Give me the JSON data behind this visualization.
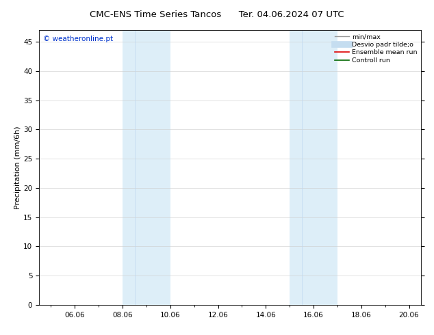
{
  "title_left": "CMC-ENS Time Series Tancos",
  "title_right": "Ter. 04.06.2024 07 UTC",
  "ylabel": "Precipitation (mm/6h)",
  "xlim_start": 4.5,
  "xlim_end": 20.5,
  "ylim": [
    0,
    47
  ],
  "yticks": [
    0,
    5,
    10,
    15,
    20,
    25,
    30,
    35,
    40,
    45
  ],
  "xtick_labels": [
    "06.06",
    "08.06",
    "10.06",
    "12.06",
    "14.06",
    "16.06",
    "18.06",
    "20.06"
  ],
  "xtick_positions": [
    6,
    8,
    10,
    12,
    14,
    16,
    18,
    20
  ],
  "shaded_regions": [
    {
      "xmin": 8.0,
      "xmax": 8.5,
      "color": "#ddeef8"
    },
    {
      "xmin": 8.5,
      "xmax": 10.0,
      "color": "#ddeef8"
    },
    {
      "xmin": 15.0,
      "xmax": 15.5,
      "color": "#ddeef8"
    },
    {
      "xmin": 15.5,
      "xmax": 17.0,
      "color": "#ddeef8"
    }
  ],
  "shaded_bands": [
    {
      "xmin": 8.0,
      "xmax": 10.0,
      "color": "#ddeef8"
    },
    {
      "xmin": 15.0,
      "xmax": 17.0,
      "color": "#ddeef8"
    }
  ],
  "watermark_text": "© weatheronline.pt",
  "watermark_color": "#0033cc",
  "legend_entries": [
    {
      "label": "min/max",
      "color": "#999999",
      "lw": 1.0
    },
    {
      "label": "Desvio padr tilde;o",
      "color": "#c5ddf0",
      "lw": 7
    },
    {
      "label": "Ensemble mean run",
      "color": "#dd0000",
      "lw": 1.2
    },
    {
      "label": "Controll run",
      "color": "#006600",
      "lw": 1.2
    }
  ],
  "bg_color": "#ffffff",
  "title_fontsize": 9.5,
  "tick_fontsize": 7.5,
  "ylabel_fontsize": 8,
  "watermark_fontsize": 7.5,
  "legend_fontsize": 6.8
}
